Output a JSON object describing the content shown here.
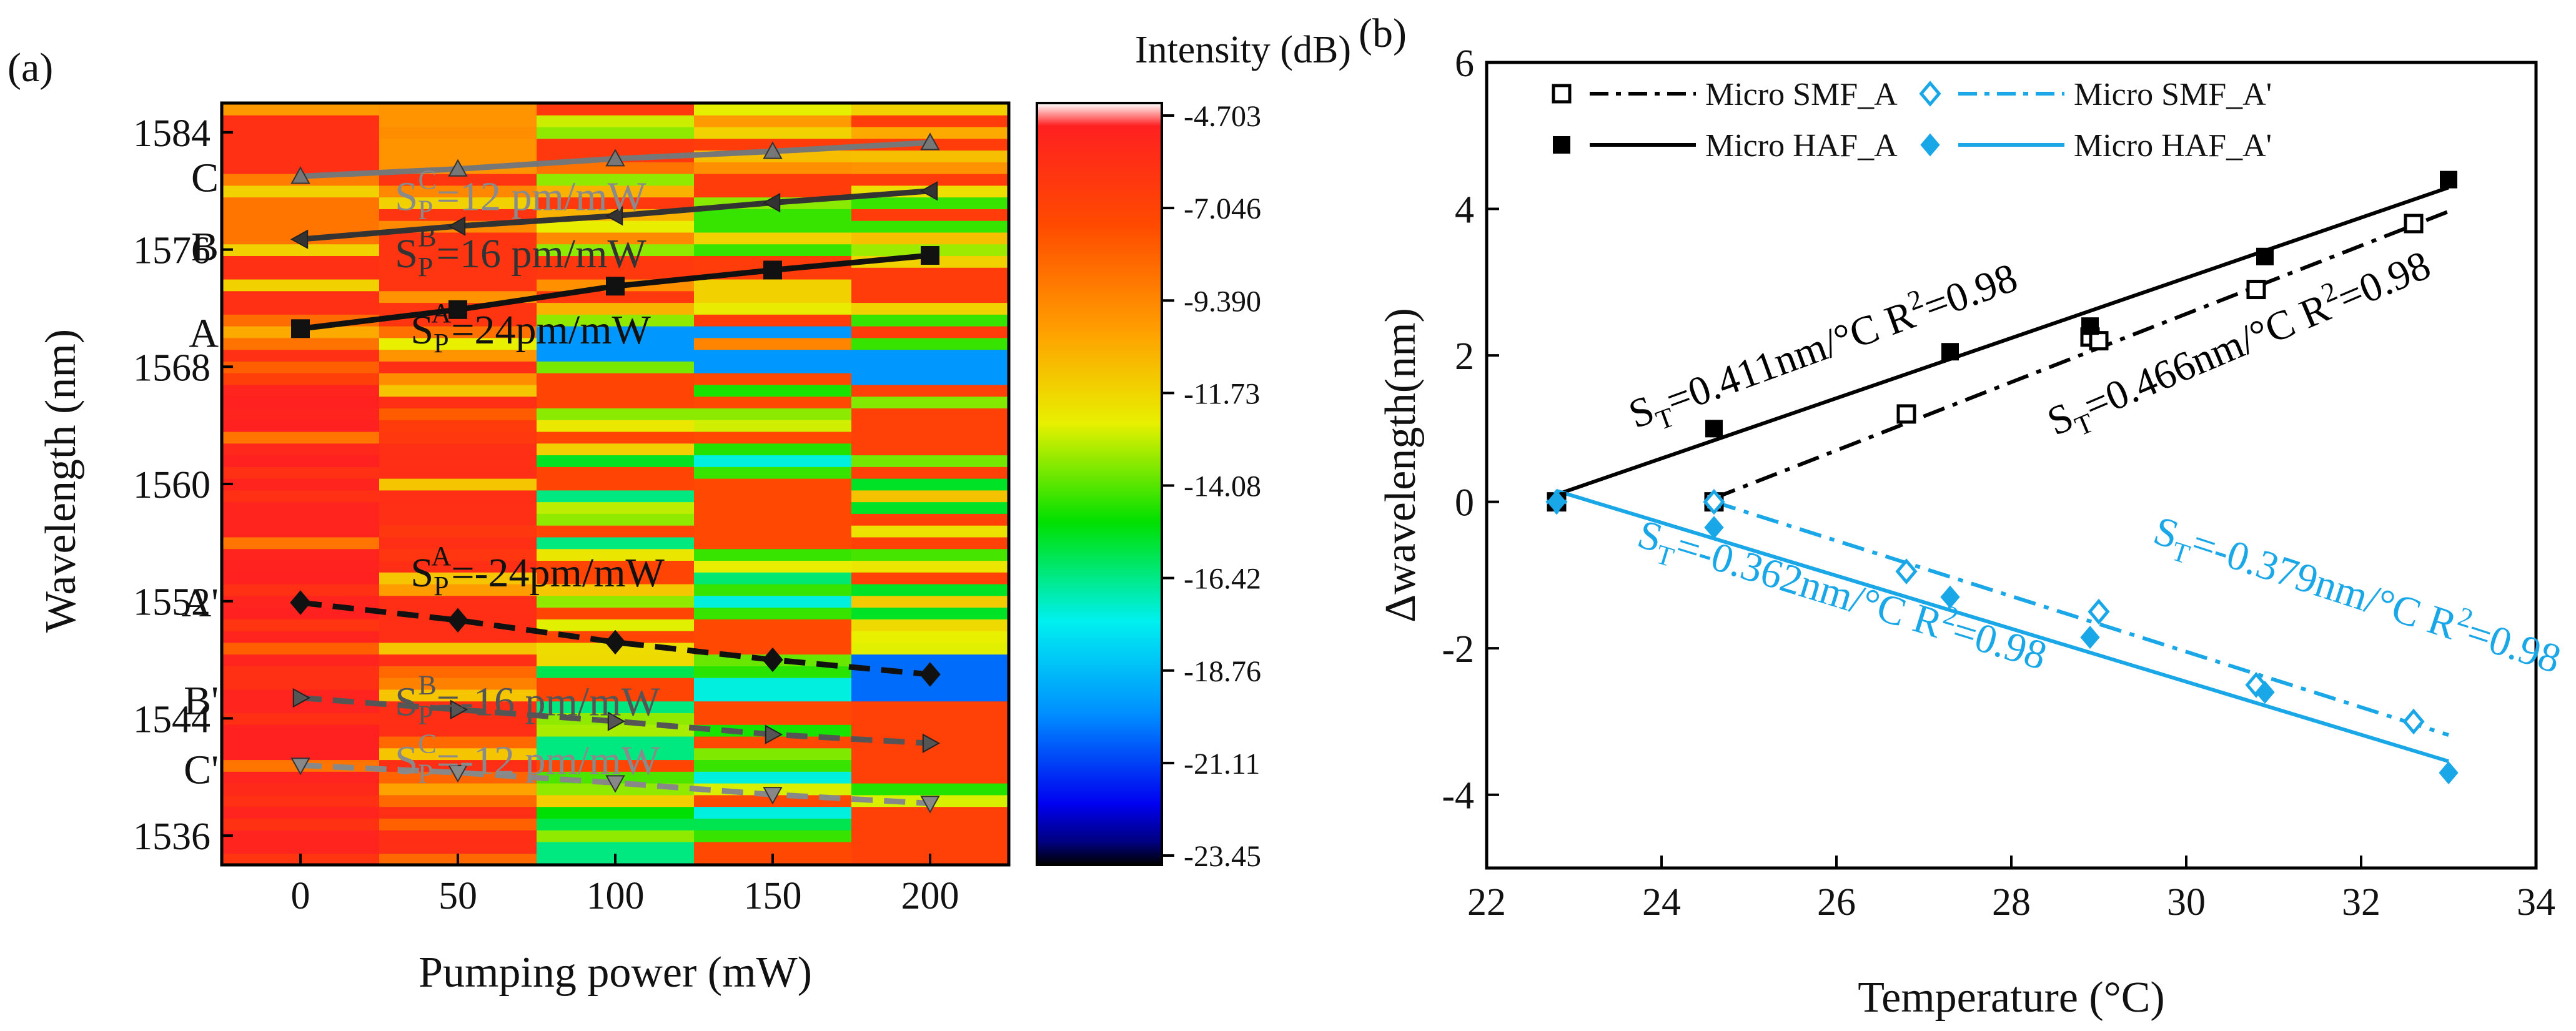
{
  "figure": {
    "panel_a_label": "(a)",
    "panel_b_label": "(b)"
  },
  "chart_data": [
    {
      "type": "heatmap",
      "panel": "(a)",
      "xlabel": "Pumping power (mW)",
      "ylabel": "Wavelength (nm)",
      "xlim": [
        -25,
        225
      ],
      "ylim": [
        1534,
        1586
      ],
      "xticks": [
        0,
        50,
        100,
        150,
        200
      ],
      "yticks": [
        1536,
        1544,
        1552,
        1560,
        1568,
        1576,
        1584
      ],
      "x_columns": [
        {
          "range": [
            -25,
            25
          ],
          "pump_mW": 0
        },
        {
          "range": [
            25,
            75
          ],
          "pump_mW": 50
        },
        {
          "range": [
            75,
            125
          ],
          "pump_mW": 100
        },
        {
          "range": [
            125,
            175
          ],
          "pump_mW": 150
        },
        {
          "range": [
            175,
            225
          ],
          "pump_mW": 200
        }
      ],
      "colorbar": {
        "title": "Intensity (dB)",
        "min": -23.45,
        "max": -4.703,
        "tick_labels": [
          "-4.703",
          "-7.046",
          "-9.390",
          "-11.73",
          "-14.08",
          "-16.42",
          "-18.76",
          "-21.11",
          "-23.45"
        ],
        "tick_values": [
          -4.703,
          -7.046,
          -9.39,
          -11.73,
          -14.08,
          -16.42,
          -18.76,
          -21.11,
          -23.45
        ]
      },
      "series": [
        {
          "name": "C",
          "x": [
            0,
            50,
            100,
            150,
            200
          ],
          "y": [
            1581.0,
            1581.5,
            1582.2,
            1582.7,
            1583.3
          ],
          "color": "#777777",
          "marker": "triangle-up",
          "dash": "solid"
        },
        {
          "name": "B",
          "x": [
            0,
            50,
            100,
            150,
            200
          ],
          "y": [
            1576.7,
            1577.6,
            1578.3,
            1579.2,
            1580.0
          ],
          "color": "#333333",
          "marker": "triangle-left",
          "dash": "solid"
        },
        {
          "name": "A",
          "x": [
            0,
            50,
            100,
            150,
            200
          ],
          "y": [
            1570.6,
            1571.9,
            1573.5,
            1574.6,
            1575.6
          ],
          "color": "#111111",
          "marker": "square",
          "dash": "solid"
        },
        {
          "name": "A'",
          "x": [
            0,
            50,
            100,
            150,
            200
          ],
          "y": [
            1551.9,
            1550.7,
            1549.2,
            1548.0,
            1547.0
          ],
          "color": "#111111",
          "marker": "diamond",
          "dash": "dashed"
        },
        {
          "name": "B'",
          "x": [
            0,
            50,
            100,
            150,
            200
          ],
          "y": [
            1545.4,
            1544.6,
            1543.8,
            1542.9,
            1542.3
          ],
          "color": "#555555",
          "marker": "triangle-right",
          "dash": "dashed"
        },
        {
          "name": "C'",
          "x": [
            0,
            50,
            100,
            150,
            200
          ],
          "y": [
            1540.8,
            1540.3,
            1539.6,
            1538.8,
            1538.2
          ],
          "color": "#888888",
          "marker": "triangle-down",
          "dash": "dashed"
        }
      ],
      "annotations": [
        {
          "text": "S_P^C=12 pm/mW",
          "main": "=12 pm/mW",
          "sup": "C",
          "x": 30,
          "y": 1578.7,
          "color": "#8a8a8a"
        },
        {
          "text": "S_P^B=16 pm/mW",
          "main": "=16 pm/mW",
          "sup": "B",
          "x": 30,
          "y": 1574.8,
          "color": "#333333"
        },
        {
          "text": "S_P^A=24pm/mW",
          "main": "=24pm/mW",
          "sup": "A",
          "x": 35,
          "y": 1569.6,
          "color": "#111111"
        },
        {
          "text": "S_P^A=-24pm/mW",
          "main": "=-24pm/mW",
          "sup": "A",
          "x": 35,
          "y": 1553.0,
          "color": "#111111"
        },
        {
          "text": "S_P^B=-16 pm/mW",
          "main": "=-16 pm/mW",
          "sup": "B",
          "x": 30,
          "y": 1544.2,
          "color": "#555555"
        },
        {
          "text": "S_P^C=-12 pm/mW",
          "main": "=-12 pm/mW",
          "sup": "C",
          "x": 30,
          "y": 1540.2,
          "color": "#8a8a8a"
        }
      ],
      "row_labels": [
        {
          "text": "C",
          "y": 1580.9
        },
        {
          "text": "B",
          "y": 1576.2
        },
        {
          "text": "A",
          "y": 1570.3
        },
        {
          "text": "A'",
          "y": 1551.9
        },
        {
          "text": "B'",
          "y": 1545.2
        },
        {
          "text": "C'",
          "y": 1540.5
        }
      ],
      "heatmap_bands": {
        "comment": "Approximate colour bands of the intensity map per column, wavelength ranges in nm, level 0 = -4.703 dB (red), 1 = -23.45 dB (black)",
        "columns": [
          [
            [
              1534,
              1568,
              0.05
            ],
            [
              1568,
              1586,
              0.2
            ]
          ],
          [
            [
              1534,
              1568,
              0.18
            ],
            [
              1568,
              1586,
              0.25
            ]
          ],
          [
            [
              1534,
              1568,
              0.45
            ],
            [
              1568,
              1586,
              0.3
            ]
          ],
          [
            [
              1534,
              1568,
              0.5
            ],
            [
              1568,
              1586,
              0.35
            ]
          ],
          [
            [
              1534,
              1568,
              0.4
            ],
            [
              1568,
              1586,
              0.35
            ]
          ]
        ]
      }
    },
    {
      "type": "scatter",
      "panel": "(b)",
      "xlabel": "Temperature (°C)",
      "ylabel": "Δwavelength(nm)",
      "xlim": [
        22,
        34
      ],
      "ylim": [
        -5,
        6
      ],
      "xticks": [
        22,
        24,
        26,
        28,
        30,
        32,
        34
      ],
      "yticks": [
        -4,
        -2,
        0,
        2,
        4,
        6
      ],
      "legend_position": "top",
      "series": [
        {
          "name": "Micro SMF_A",
          "x": [
            22.8,
            24.6,
            26.8,
            28.9,
            29.0,
            30.8,
            32.6
          ],
          "y": [
            0.0,
            0.0,
            1.2,
            2.25,
            2.2,
            2.9,
            3.8
          ],
          "color": "#000000",
          "marker": "open-square",
          "line": "dashdot",
          "fit": {
            "slope": 0.466,
            "from": 24.6,
            "to": 33.0,
            "intercept_at_from": 0.05
          }
        },
        {
          "name": "Micro SMF_A'",
          "x": [
            22.8,
            24.6,
            26.8,
            29.0,
            30.8,
            32.6
          ],
          "y": [
            0.0,
            0.0,
            -0.95,
            -1.5,
            -2.5,
            -3.0
          ],
          "color": "#1aa7e8",
          "marker": "open-diamond",
          "line": "dashdot",
          "fit": {
            "slope": -0.379,
            "from": 24.6,
            "to": 33.0,
            "intercept_at_from": 0.0
          }
        },
        {
          "name": "Micro HAF_A",
          "x": [
            22.8,
            24.6,
            27.3,
            28.9,
            30.9,
            33.0
          ],
          "y": [
            0.0,
            1.0,
            2.05,
            2.4,
            3.35,
            4.4
          ],
          "color": "#000000",
          "marker": "filled-square",
          "line": "solid",
          "fit": {
            "slope": 0.411,
            "from": 22.8,
            "to": 33.0,
            "intercept_at_from": 0.1
          }
        },
        {
          "name": "Micro HAF_A'",
          "x": [
            22.8,
            24.6,
            27.3,
            28.9,
            30.9,
            33.0
          ],
          "y": [
            0.0,
            -0.35,
            -1.3,
            -1.85,
            -2.6,
            -3.7
          ],
          "color": "#1aa7e8",
          "marker": "filled-diamond",
          "line": "solid",
          "fit": {
            "slope": -0.362,
            "from": 22.8,
            "to": 33.0,
            "intercept_at_from": 0.15
          }
        }
      ],
      "annotations": [
        {
          "text": "S_T=0.411nm/°C R^2=0.98",
          "pre": "S",
          "sub": "T",
          "mid": "=0.411nm/°C R",
          "sup": "2",
          "post": "=0.98",
          "x": 23.7,
          "y": 1.0,
          "angle": -20,
          "color": "#000000"
        },
        {
          "text": "S_T=0.466nm/°C R^2=0.98",
          "pre": "S",
          "sub": "T",
          "mid": "=0.466nm/°C R",
          "sup": "2",
          "post": "=0.98",
          "x": 28.5,
          "y": 0.9,
          "angle": -23,
          "color": "#000000"
        },
        {
          "text": "S_T=-0.379nm/°C R^2=0.98",
          "pre": "S",
          "sub": "T",
          "mid": "=-0.379nm/°C R",
          "sup": "2",
          "post": "=0.98",
          "x": 29.6,
          "y": -0.55,
          "angle": 18,
          "color": "#1aa7e8"
        },
        {
          "text": "S_T=-0.362nm/°C R^2=0.98",
          "pre": "S",
          "sub": "T",
          "mid": "=-0.362nm/°C R",
          "sup": "2",
          "post": "=0.98",
          "x": 23.7,
          "y": -0.6,
          "angle": 17,
          "color": "#1aa7e8"
        }
      ]
    }
  ]
}
